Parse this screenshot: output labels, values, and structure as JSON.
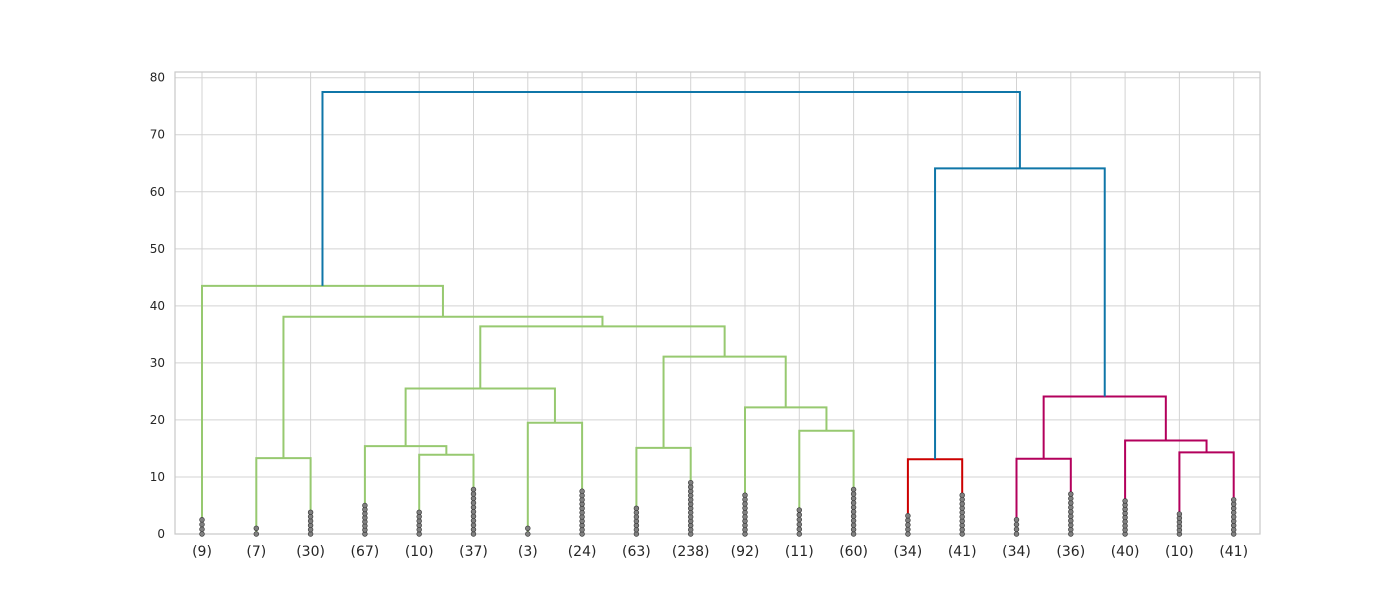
{
  "chart_data": {
    "type": "dendrogram",
    "title": "",
    "xlabel": "",
    "ylabel": "",
    "ylim": [
      0,
      81
    ],
    "yticks": [
      0,
      10,
      20,
      30,
      40,
      50,
      60,
      70,
      80
    ],
    "grid": true,
    "colors": {
      "green": "#97c970",
      "red": "#cc0000",
      "magenta": "#b3005c",
      "blue": "#0f76a8",
      "grid": "#d3d3d3",
      "frame": "#c8c8c8",
      "marker": "#808080"
    },
    "leaves": [
      {
        "label": "(9)",
        "marker_max": 2.5
      },
      {
        "label": "(7)",
        "marker_max": 1.0
      },
      {
        "label": "(30)",
        "marker_max": 3.8
      },
      {
        "label": "(67)",
        "marker_max": 5.0
      },
      {
        "label": "(10)",
        "marker_max": 3.8
      },
      {
        "label": "(37)",
        "marker_max": 7.8
      },
      {
        "label": "(3)",
        "marker_max": 1.0
      },
      {
        "label": "(24)",
        "marker_max": 7.5
      },
      {
        "label": "(63)",
        "marker_max": 4.5
      },
      {
        "label": "(238)",
        "marker_max": 9.0
      },
      {
        "label": "(92)",
        "marker_max": 6.8
      },
      {
        "label": "(11)",
        "marker_max": 4.2
      },
      {
        "label": "(60)",
        "marker_max": 7.8
      },
      {
        "label": "(34)",
        "marker_max": 3.2
      },
      {
        "label": "(41)",
        "marker_max": 6.8
      },
      {
        "label": "(34)",
        "marker_max": 2.5
      },
      {
        "label": "(36)",
        "marker_max": 7.0
      },
      {
        "label": "(40)",
        "marker_max": 5.8
      },
      {
        "label": "(10)",
        "marker_max": 3.5
      },
      {
        "label": "(41)",
        "marker_max": 6.0
      }
    ],
    "merges": [
      {
        "left": 13,
        "right": 14,
        "height": 13.1,
        "color": "red"
      },
      {
        "left": 15,
        "right": 16,
        "height": 13.2,
        "color": "magenta"
      },
      {
        "left": 18,
        "right": 19,
        "height": 14.3,
        "color": "magenta"
      },
      {
        "left": 17,
        "right": "m2",
        "height": 16.4,
        "color": "magenta"
      },
      {
        "left": "m1",
        "right": "m3",
        "height": 24.1,
        "color": "magenta"
      },
      {
        "left": "m0",
        "right": "m4",
        "height": 64.1,
        "color": "blue"
      },
      {
        "left": 1,
        "right": 2,
        "height": 13.3,
        "color": "green"
      },
      {
        "left": 4,
        "right": 5,
        "height": 13.9,
        "color": "green"
      },
      {
        "left": 3,
        "right": "m7",
        "height": 15.4,
        "color": "green"
      },
      {
        "left": 6,
        "right": 7,
        "height": 19.5,
        "color": "green"
      },
      {
        "left": "m8",
        "right": "m9",
        "height": 25.5,
        "color": "green"
      },
      {
        "left": 8,
        "right": 9,
        "height": 15.1,
        "color": "green"
      },
      {
        "left": 11,
        "right": 12,
        "height": 18.1,
        "color": "green"
      },
      {
        "left": 10,
        "right": "m12",
        "height": 22.2,
        "color": "green"
      },
      {
        "left": "m11",
        "right": "m13",
        "height": 31.1,
        "color": "green"
      },
      {
        "left": "m10",
        "right": "m14",
        "height": 36.4,
        "color": "green"
      },
      {
        "left": "m6",
        "right": "m15",
        "height": 38.1,
        "color": "green"
      },
      {
        "left": 0,
        "right": "m16",
        "height": 43.5,
        "color": "green"
      },
      {
        "left": "m17",
        "right": "m5",
        "height": 77.5,
        "color": "blue"
      }
    ]
  }
}
